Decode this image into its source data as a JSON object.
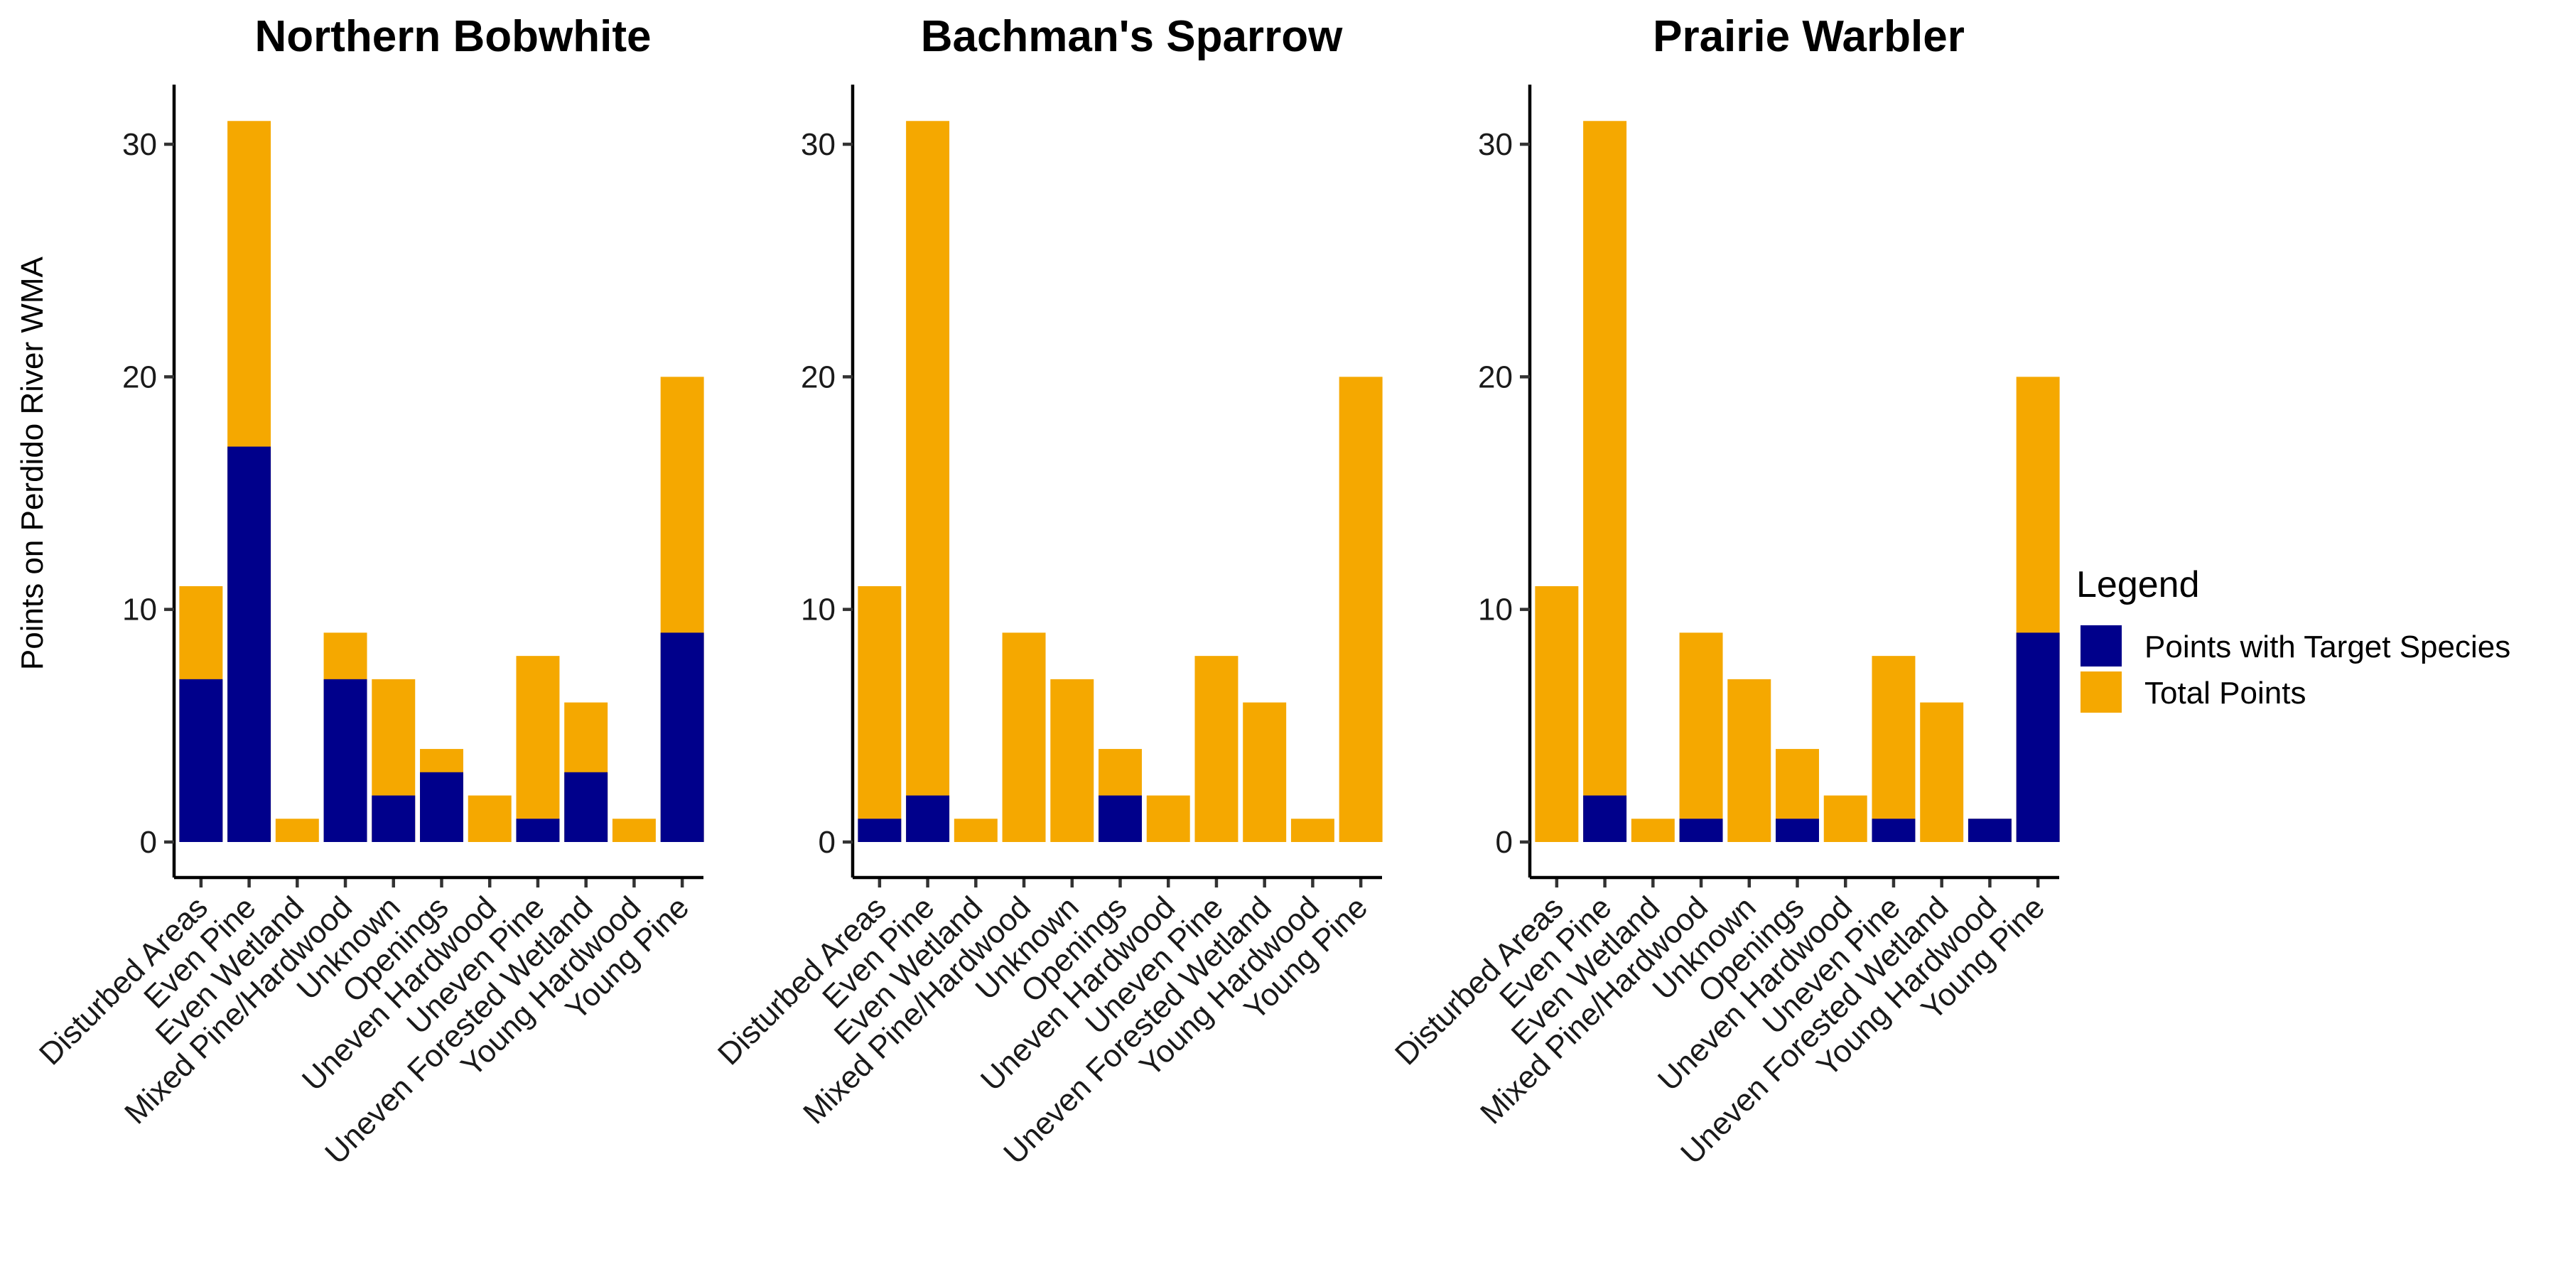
{
  "chart_data": {
    "type": "bar",
    "stacked": true,
    "y_axis_label": "Points on Perdido River WMA",
    "ylim": [
      0,
      32.5
    ],
    "y_ticks": [
      0,
      10,
      20,
      30
    ],
    "grid": false,
    "categories": [
      "Disturbed Areas",
      "Even Pine",
      "Even Wetland",
      "Mixed Pine/Hardwood",
      "Unknown",
      "Openings",
      "Uneven Hardwood",
      "Uneven Pine",
      "Uneven Forested Wetland",
      "Young Hardwood",
      "Young Pine"
    ],
    "legend": {
      "title": "Legend",
      "placement": "right",
      "items": [
        {
          "label": "Points with Target Species",
          "color": "#00008B"
        },
        {
          "label": "Total Points",
          "color": "#F5A800"
        }
      ]
    },
    "total_points": [
      11,
      31,
      1,
      9,
      7,
      4,
      2,
      8,
      6,
      1,
      20
    ],
    "panels": [
      {
        "title": "Northern Bobwhite",
        "target_points": [
          7,
          17,
          0,
          7,
          2,
          3,
          0,
          1,
          3,
          0,
          9
        ]
      },
      {
        "title": "Bachman's Sparrow",
        "target_points": [
          1,
          2,
          0,
          0,
          0,
          2,
          0,
          0,
          0,
          0,
          0
        ]
      },
      {
        "title": "Prairie Warbler",
        "target_points": [
          0,
          2,
          0,
          1,
          0,
          1,
          0,
          1,
          0,
          1,
          9
        ]
      }
    ]
  }
}
